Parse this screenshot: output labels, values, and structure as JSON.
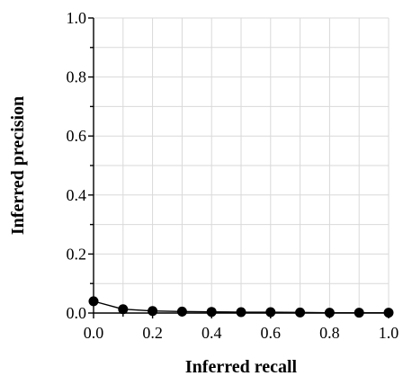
{
  "chart_data": {
    "type": "line",
    "xlabel": "Inferred recall",
    "ylabel": "Inferred precision",
    "xlim": [
      0.0,
      1.0
    ],
    "ylim": [
      0.0,
      1.0
    ],
    "grid": true,
    "x_ticks": [
      "0.0",
      "0.2",
      "0.4",
      "0.6",
      "0.8",
      "1.0"
    ],
    "y_ticks": [
      "0.0",
      "0.2",
      "0.4",
      "0.6",
      "0.8",
      "1.0"
    ],
    "x_tick_values": [
      0.0,
      0.2,
      0.4,
      0.6,
      0.8,
      1.0
    ],
    "y_tick_values": [
      0.0,
      0.2,
      0.4,
      0.6,
      0.8,
      1.0
    ],
    "series": [
      {
        "color": "#000000",
        "x": [
          0.0,
          0.1,
          0.2,
          0.3,
          0.4,
          0.5,
          0.6,
          0.7,
          0.8,
          0.9,
          1.0
        ],
        "y": [
          0.04,
          0.013,
          0.007,
          0.005,
          0.004,
          0.003,
          0.003,
          0.002,
          0.001,
          0.001,
          0.001
        ]
      }
    ]
  }
}
